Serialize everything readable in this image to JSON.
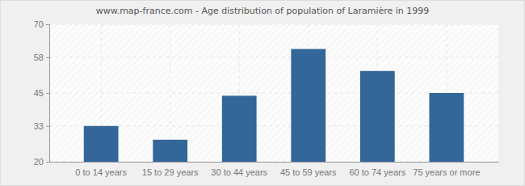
{
  "chart_data": {
    "type": "bar",
    "title": "www.map-france.com - Age distribution of population of Laramière in 1999",
    "categories": [
      "0 to 14 years",
      "15 to 29 years",
      "30 to 44 years",
      "45 to 59 years",
      "60 to 74 years",
      "75 years or more"
    ],
    "values": [
      33,
      28,
      44,
      61,
      53,
      45
    ],
    "color": "#336699",
    "ylim": [
      20,
      70
    ],
    "yticks": [
      20,
      33,
      45,
      58,
      70
    ],
    "grid": true
  }
}
